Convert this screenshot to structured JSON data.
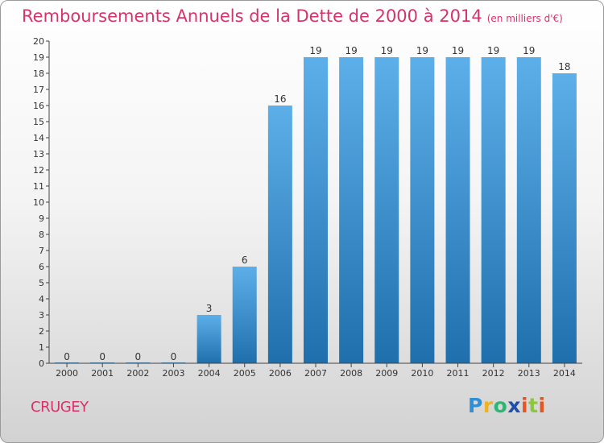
{
  "header": {
    "title": "Remboursements Annuels de la Dette de 2000 à 2014",
    "unit": "(en milliers d'€)"
  },
  "footer": {
    "commune": "CRUGEY",
    "logo": "Proxiti"
  },
  "colors": {
    "title": "#d6336c",
    "bar_light": "#5dafe9",
    "bar_dark": "#1f6fac",
    "axis": "#333333"
  },
  "chart_data": {
    "type": "bar",
    "title": "Remboursements Annuels de la Dette de 2000 à 2014",
    "subtitle": "(en milliers d'€)",
    "xlabel": "",
    "ylabel": "",
    "categories": [
      "2000",
      "2001",
      "2002",
      "2003",
      "2004",
      "2005",
      "2006",
      "2007",
      "2008",
      "2009",
      "2010",
      "2011",
      "2012",
      "2013",
      "2014"
    ],
    "values": [
      0,
      0,
      0,
      0,
      3,
      6,
      16,
      19,
      19,
      19,
      19,
      19,
      19,
      19,
      18
    ],
    "ylim": [
      0,
      20
    ],
    "yticks": [
      0,
      1,
      2,
      3,
      4,
      5,
      6,
      7,
      8,
      9,
      10,
      11,
      12,
      13,
      14,
      15,
      16,
      17,
      18,
      19,
      20
    ],
    "grid": false,
    "data_labels": true,
    "legend": "none"
  }
}
